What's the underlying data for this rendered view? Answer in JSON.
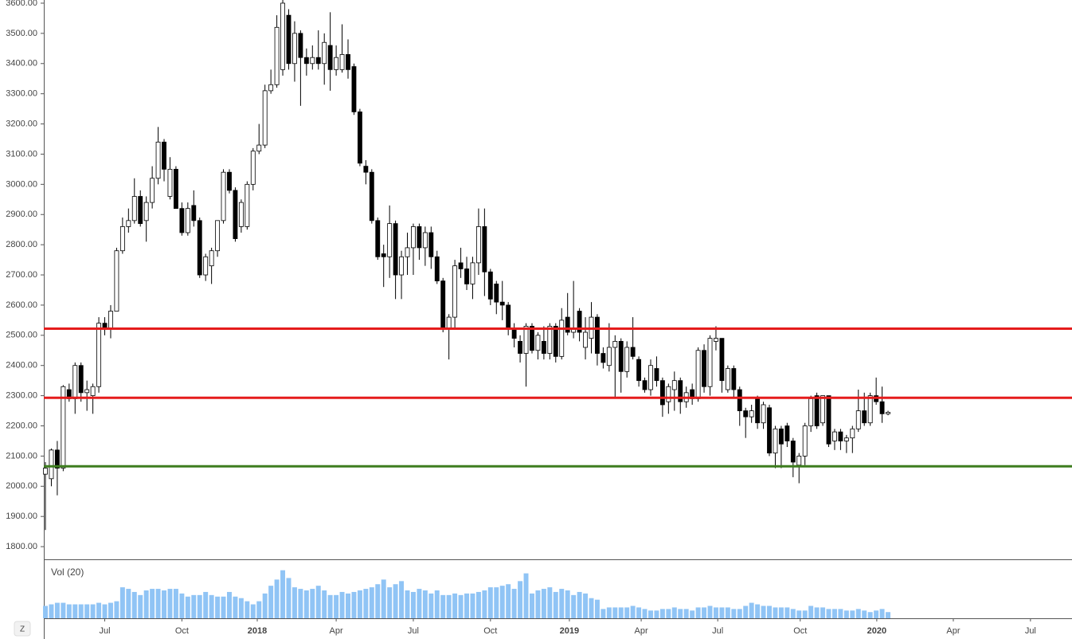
{
  "chart_data": {
    "type": "candlestick",
    "candles": [
      [
        2040,
        2080,
        1855,
        2060
      ],
      [
        2025,
        2125,
        2000,
        2120
      ],
      [
        2120,
        2150,
        1970,
        2060
      ],
      [
        2060,
        2335,
        2050,
        2330
      ],
      [
        2320,
        2340,
        2280,
        2290
      ],
      [
        2290,
        2410,
        2240,
        2400
      ],
      [
        2400,
        2410,
        2280,
        2310
      ],
      [
        2310,
        2350,
        2250,
        2320
      ],
      [
        2300,
        2340,
        2240,
        2330
      ],
      [
        2330,
        2560,
        2310,
        2540
      ],
      [
        2540,
        2560,
        2500,
        2520
      ],
      [
        2520,
        2600,
        2490,
        2580
      ],
      [
        2580,
        2790,
        2580,
        2780
      ],
      [
        2780,
        2890,
        2770,
        2860
      ],
      [
        2860,
        2920,
        2840,
        2880
      ],
      [
        2880,
        3020,
        2870,
        2960
      ],
      [
        2960,
        2980,
        2860,
        2870
      ],
      [
        2880,
        2960,
        2810,
        2940
      ],
      [
        2940,
        3060,
        2920,
        3020
      ],
      [
        3020,
        3190,
        3000,
        3140
      ],
      [
        3140,
        3150,
        3010,
        3050
      ],
      [
        2960,
        3090,
        2950,
        3050
      ],
      [
        3050,
        3060,
        2920,
        2920
      ],
      [
        2920,
        2940,
        2830,
        2840
      ],
      [
        2840,
        2940,
        2830,
        2920
      ],
      [
        2930,
        2980,
        2860,
        2880
      ],
      [
        2880,
        2890,
        2690,
        2700
      ],
      [
        2700,
        2770,
        2680,
        2760
      ],
      [
        2730,
        2790,
        2670,
        2780
      ],
      [
        2780,
        2880,
        2760,
        2880
      ],
      [
        2880,
        3050,
        2870,
        3040
      ],
      [
        3040,
        3050,
        2970,
        2980
      ],
      [
        2980,
        2990,
        2810,
        2820
      ],
      [
        2860,
        2950,
        2840,
        2940
      ],
      [
        2860,
        3010,
        2850,
        3000
      ],
      [
        3000,
        3120,
        2980,
        3110
      ],
      [
        3110,
        3200,
        3100,
        3130
      ],
      [
        3130,
        3330,
        3120,
        3310
      ],
      [
        3310,
        3380,
        3300,
        3330
      ],
      [
        3330,
        3560,
        3320,
        3520
      ],
      [
        3380,
        3640,
        3360,
        3600
      ],
      [
        3560,
        3580,
        3380,
        3400
      ],
      [
        3400,
        3540,
        3340,
        3500
      ],
      [
        3500,
        3510,
        3260,
        3420
      ],
      [
        3420,
        3450,
        3360,
        3400
      ],
      [
        3400,
        3460,
        3380,
        3420
      ],
      [
        3420,
        3510,
        3380,
        3400
      ],
      [
        3400,
        3500,
        3330,
        3470
      ],
      [
        3460,
        3570,
        3310,
        3380
      ],
      [
        3380,
        3460,
        3360,
        3420
      ],
      [
        3380,
        3530,
        3370,
        3430
      ],
      [
        3430,
        3480,
        3350,
        3380
      ],
      [
        3390,
        3400,
        3230,
        3240
      ],
      [
        3240,
        3250,
        3060,
        3070
      ],
      [
        3060,
        3080,
        3000,
        3040
      ],
      [
        3040,
        3050,
        2870,
        2880
      ],
      [
        2880,
        2890,
        2750,
        2760
      ],
      [
        2770,
        2800,
        2660,
        2760
      ],
      [
        2760,
        2930,
        2690,
        2870
      ],
      [
        2870,
        2880,
        2620,
        2700
      ],
      [
        2700,
        2780,
        2620,
        2760
      ],
      [
        2760,
        2840,
        2700,
        2790
      ],
      [
        2790,
        2870,
        2700,
        2860
      ],
      [
        2860,
        2870,
        2750,
        2790
      ],
      [
        2790,
        2860,
        2730,
        2840
      ],
      [
        2840,
        2860,
        2720,
        2760
      ],
      [
        2760,
        2780,
        2670,
        2680
      ],
      [
        2680,
        2690,
        2510,
        2520
      ],
      [
        2520,
        2570,
        2420,
        2560
      ],
      [
        2560,
        2750,
        2520,
        2730
      ],
      [
        2740,
        2790,
        2690,
        2720
      ],
      [
        2720,
        2760,
        2650,
        2670
      ],
      [
        2670,
        2760,
        2620,
        2740
      ],
      [
        2740,
        2920,
        2700,
        2860
      ],
      [
        2860,
        2920,
        2630,
        2710
      ],
      [
        2710,
        2720,
        2600,
        2620
      ],
      [
        2670,
        2680,
        2570,
        2610
      ],
      [
        2610,
        2680,
        2550,
        2600
      ],
      [
        2600,
        2610,
        2500,
        2520
      ],
      [
        2520,
        2540,
        2460,
        2490
      ],
      [
        2480,
        2500,
        2410,
        2440
      ],
      [
        2440,
        2540,
        2330,
        2530
      ],
      [
        2530,
        2540,
        2440,
        2450
      ],
      [
        2450,
        2510,
        2420,
        2500
      ],
      [
        2480,
        2530,
        2420,
        2440
      ],
      [
        2440,
        2540,
        2420,
        2530
      ],
      [
        2530,
        2540,
        2410,
        2430
      ],
      [
        2430,
        2590,
        2420,
        2550
      ],
      [
        2560,
        2640,
        2500,
        2510
      ],
      [
        2510,
        2680,
        2490,
        2520
      ],
      [
        2580,
        2590,
        2480,
        2510
      ],
      [
        2460,
        2560,
        2420,
        2510
      ],
      [
        2490,
        2610,
        2440,
        2560
      ],
      [
        2560,
        2570,
        2400,
        2440
      ],
      [
        2440,
        2460,
        2390,
        2410
      ],
      [
        2400,
        2540,
        2380,
        2460
      ],
      [
        2460,
        2500,
        2290,
        2480
      ],
      [
        2480,
        2490,
        2310,
        2380
      ],
      [
        2380,
        2480,
        2360,
        2460
      ],
      [
        2460,
        2560,
        2420,
        2430
      ],
      [
        2420,
        2430,
        2330,
        2350
      ],
      [
        2350,
        2360,
        2310,
        2320
      ],
      [
        2320,
        2420,
        2300,
        2400
      ],
      [
        2390,
        2430,
        2330,
        2350
      ],
      [
        2350,
        2360,
        2230,
        2270
      ],
      [
        2280,
        2340,
        2240,
        2330
      ],
      [
        2320,
        2380,
        2250,
        2350
      ],
      [
        2350,
        2360,
        2240,
        2280
      ],
      [
        2280,
        2330,
        2260,
        2310
      ],
      [
        2320,
        2340,
        2270,
        2290
      ],
      [
        2290,
        2460,
        2280,
        2450
      ],
      [
        2450,
        2470,
        2310,
        2330
      ],
      [
        2330,
        2500,
        2300,
        2490
      ],
      [
        2480,
        2530,
        2450,
        2490
      ],
      [
        2490,
        2490,
        2310,
        2350
      ],
      [
        2320,
        2400,
        2310,
        2390
      ],
      [
        2390,
        2400,
        2290,
        2320
      ],
      [
        2320,
        2330,
        2200,
        2250
      ],
      [
        2250,
        2260,
        2160,
        2230
      ],
      [
        2230,
        2270,
        2210,
        2250
      ],
      [
        2290,
        2300,
        2190,
        2210
      ],
      [
        2210,
        2280,
        2190,
        2270
      ],
      [
        2260,
        2270,
        2100,
        2110
      ],
      [
        2110,
        2200,
        2060,
        2190
      ],
      [
        2190,
        2200,
        2060,
        2140
      ],
      [
        2200,
        2210,
        2130,
        2150
      ],
      [
        2150,
        2160,
        2030,
        2080
      ],
      [
        2070,
        2110,
        2010,
        2100
      ],
      [
        2100,
        2210,
        2070,
        2200
      ],
      [
        2200,
        2300,
        2180,
        2290
      ],
      [
        2300,
        2310,
        2190,
        2200
      ],
      [
        2210,
        2300,
        2200,
        2300
      ],
      [
        2300,
        2300,
        2130,
        2140
      ],
      [
        2150,
        2190,
        2120,
        2180
      ],
      [
        2180,
        2190,
        2120,
        2150
      ],
      [
        2150,
        2170,
        2110,
        2160
      ],
      [
        2160,
        2200,
        2110,
        2190
      ],
      [
        2190,
        2320,
        2180,
        2250
      ],
      [
        2250,
        2310,
        2200,
        2210
      ],
      [
        2210,
        2310,
        2200,
        2300
      ],
      [
        2300,
        2360,
        2270,
        2280
      ],
      [
        2280,
        2330,
        2210,
        2240
      ],
      [
        2240,
        2250,
        2235,
        2245
      ]
    ],
    "volume": [
      16,
      18,
      20,
      20,
      18,
      18,
      18,
      18,
      18,
      20,
      18,
      20,
      22,
      40,
      38,
      34,
      30,
      36,
      38,
      38,
      36,
      38,
      38,
      32,
      28,
      30,
      30,
      34,
      30,
      28,
      28,
      34,
      28,
      26,
      22,
      18,
      22,
      32,
      42,
      50,
      62,
      52,
      40,
      38,
      36,
      38,
      42,
      36,
      30,
      30,
      34,
      32,
      34,
      36,
      38,
      40,
      44,
      50,
      40,
      44,
      48,
      36,
      34,
      38,
      36,
      32,
      36,
      30,
      30,
      32,
      30,
      32,
      32,
      34,
      36,
      40,
      40,
      42,
      44,
      38,
      48,
      58,
      32,
      36,
      38,
      40,
      34,
      38,
      36,
      30,
      34,
      32,
      26,
      24,
      12,
      14,
      14,
      14,
      14,
      16,
      14,
      12,
      10,
      10,
      12,
      12,
      14,
      12,
      12,
      10,
      14,
      14,
      16,
      14,
      14,
      14,
      12,
      12,
      16,
      20,
      18,
      16,
      16,
      14,
      14,
      14,
      12,
      10,
      10,
      16,
      14,
      14,
      12,
      12,
      12,
      10,
      10,
      12,
      10,
      8,
      10,
      12,
      8
    ],
    "volume_label": "Vol (20)",
    "volume_color": "#90c4f5",
    "volume_lim": [
      0,
      72
    ],
    "up_color": "#ffffff",
    "down_color": "#000000",
    "levels": [
      {
        "value": 2522,
        "color": "#e51c1c"
      },
      {
        "value": 2293,
        "color": "#e51c1c"
      },
      {
        "value": 2066,
        "color": "#3d7d1e"
      }
    ],
    "xlim": [
      -0.27,
      173
    ],
    "xticks": [
      {
        "value": 10,
        "label": "Jul"
      },
      {
        "value": 23,
        "label": "Oct"
      },
      {
        "value": 35.7,
        "label": "2018"
      },
      {
        "value": 49,
        "label": "Apr"
      },
      {
        "value": 62,
        "label": "Jul"
      },
      {
        "value": 75,
        "label": "Oct"
      },
      {
        "value": 88.3,
        "label": "2019"
      },
      {
        "value": 100.4,
        "label": "Apr"
      },
      {
        "value": 113.3,
        "label": "Jul"
      },
      {
        "value": 127.2,
        "label": "Oct"
      },
      {
        "value": 140.1,
        "label": "2020"
      },
      {
        "value": 153,
        "label": "Apr"
      },
      {
        "value": 166,
        "label": "Jul"
      }
    ],
    "ylim": [
      1758,
      3610.5
    ],
    "yticks": [
      {
        "value": 1800,
        "label": "1800.00"
      },
      {
        "value": 1900,
        "label": "1900.00"
      },
      {
        "value": 2000,
        "label": "2000.00"
      },
      {
        "value": 2100,
        "label": "2100.00"
      },
      {
        "value": 2200,
        "label": "2200.00"
      },
      {
        "value": 2300,
        "label": "2300.00"
      },
      {
        "value": 2400,
        "label": "2400.00"
      },
      {
        "value": 2500,
        "label": "2500.00"
      },
      {
        "value": 2600,
        "label": "2600.00"
      },
      {
        "value": 2700,
        "label": "2700.00"
      },
      {
        "value": 2800,
        "label": "2800.00"
      },
      {
        "value": 2900,
        "label": "2900.00"
      },
      {
        "value": 3000,
        "label": "3000.00"
      },
      {
        "value": 3100,
        "label": "3100.00"
      },
      {
        "value": 3200,
        "label": "3200.00"
      },
      {
        "value": 3300,
        "label": "3300.00"
      },
      {
        "value": 3400,
        "label": "3400.00"
      },
      {
        "value": 3500,
        "label": "3500.00"
      },
      {
        "value": 3600,
        "label": "3600.00"
      }
    ],
    "corner_button": "Z"
  }
}
